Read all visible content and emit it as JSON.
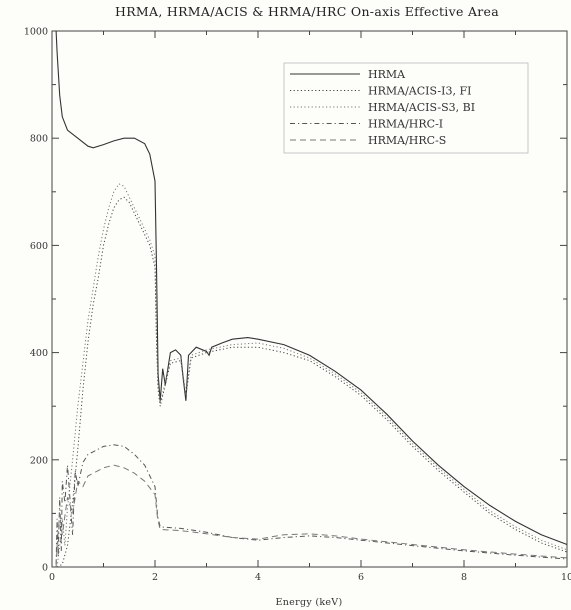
{
  "chart_data": {
    "type": "line",
    "title": "HRMA, HRMA/ACIS & HRMA/HRC On-axis Effective Area",
    "xlabel": "Energy (keV)",
    "ylabel": "",
    "xlim": [
      0,
      10
    ],
    "ylim": [
      0,
      1000
    ],
    "x_ticks": [
      "0",
      "2",
      "4",
      "6",
      "8",
      "10"
    ],
    "y_ticks": [
      "0",
      "200",
      "400",
      "600",
      "800",
      "1000"
    ],
    "grid": false,
    "legend_position": "top-right",
    "series": [
      {
        "name": "HRMA",
        "style": "solid",
        "color": "#333333",
        "points": [
          [
            0.08,
            1000
          ],
          [
            0.1,
            960
          ],
          [
            0.15,
            880
          ],
          [
            0.2,
            840
          ],
          [
            0.3,
            815
          ],
          [
            0.5,
            800
          ],
          [
            0.7,
            785
          ],
          [
            0.8,
            782
          ],
          [
            1.0,
            788
          ],
          [
            1.2,
            795
          ],
          [
            1.4,
            800
          ],
          [
            1.6,
            800
          ],
          [
            1.8,
            790
          ],
          [
            1.9,
            770
          ],
          [
            2.0,
            720
          ],
          [
            2.03,
            560
          ],
          [
            2.06,
            360
          ],
          [
            2.1,
            310
          ],
          [
            2.15,
            370
          ],
          [
            2.2,
            340
          ],
          [
            2.3,
            400
          ],
          [
            2.4,
            405
          ],
          [
            2.5,
            395
          ],
          [
            2.55,
            350
          ],
          [
            2.6,
            310
          ],
          [
            2.65,
            395
          ],
          [
            2.8,
            410
          ],
          [
            3.0,
            402
          ],
          [
            3.05,
            395
          ],
          [
            3.1,
            410
          ],
          [
            3.3,
            418
          ],
          [
            3.5,
            425
          ],
          [
            3.8,
            428
          ],
          [
            4.0,
            425
          ],
          [
            4.5,
            415
          ],
          [
            5.0,
            395
          ],
          [
            5.5,
            365
          ],
          [
            6.0,
            330
          ],
          [
            6.5,
            285
          ],
          [
            7.0,
            235
          ],
          [
            7.5,
            190
          ],
          [
            8.0,
            150
          ],
          [
            8.5,
            115
          ],
          [
            9.0,
            85
          ],
          [
            9.5,
            60
          ],
          [
            10.0,
            42
          ]
        ]
      },
      {
        "name": "HRMA/ACIS-I3, FI",
        "style": "dotted",
        "color": "#444444",
        "points": [
          [
            0.1,
            0
          ],
          [
            0.2,
            5
          ],
          [
            0.3,
            40
          ],
          [
            0.4,
            120
          ],
          [
            0.5,
            220
          ],
          [
            0.6,
            330
          ],
          [
            0.7,
            420
          ],
          [
            0.8,
            490
          ],
          [
            0.9,
            540
          ],
          [
            1.0,
            600
          ],
          [
            1.1,
            640
          ],
          [
            1.2,
            670
          ],
          [
            1.3,
            685
          ],
          [
            1.4,
            690
          ],
          [
            1.5,
            680
          ],
          [
            1.6,
            660
          ],
          [
            1.7,
            640
          ],
          [
            1.8,
            620
          ],
          [
            1.9,
            600
          ],
          [
            2.0,
            560
          ],
          [
            2.03,
            420
          ],
          [
            2.06,
            330
          ],
          [
            2.1,
            300
          ],
          [
            2.2,
            340
          ],
          [
            2.3,
            380
          ],
          [
            2.5,
            385
          ],
          [
            2.6,
            320
          ],
          [
            2.7,
            390
          ],
          [
            3.0,
            400
          ],
          [
            3.5,
            410
          ],
          [
            4.0,
            410
          ],
          [
            4.5,
            400
          ],
          [
            5.0,
            385
          ],
          [
            5.5,
            355
          ],
          [
            6.0,
            320
          ],
          [
            6.5,
            275
          ],
          [
            7.0,
            225
          ],
          [
            7.5,
            180
          ],
          [
            8.0,
            140
          ],
          [
            8.5,
            100
          ],
          [
            9.0,
            70
          ],
          [
            9.5,
            45
          ],
          [
            10.0,
            28
          ]
        ]
      },
      {
        "name": "HRMA/ACIS-S3, BI",
        "style": "dotted",
        "color": "#777777",
        "points": [
          [
            0.1,
            0
          ],
          [
            0.15,
            40
          ],
          [
            0.2,
            90
          ],
          [
            0.25,
            40
          ],
          [
            0.3,
            110
          ],
          [
            0.4,
            200
          ],
          [
            0.5,
            300
          ],
          [
            0.6,
            380
          ],
          [
            0.7,
            460
          ],
          [
            0.8,
            520
          ],
          [
            0.9,
            580
          ],
          [
            1.0,
            630
          ],
          [
            1.1,
            670
          ],
          [
            1.2,
            700
          ],
          [
            1.3,
            715
          ],
          [
            1.4,
            710
          ],
          [
            1.5,
            690
          ],
          [
            1.6,
            670
          ],
          [
            1.7,
            650
          ],
          [
            1.8,
            630
          ],
          [
            1.9,
            610
          ],
          [
            2.0,
            580
          ],
          [
            2.03,
            430
          ],
          [
            2.06,
            340
          ],
          [
            2.1,
            305
          ],
          [
            2.2,
            345
          ],
          [
            2.3,
            385
          ],
          [
            2.5,
            390
          ],
          [
            2.6,
            320
          ],
          [
            2.7,
            395
          ],
          [
            3.0,
            405
          ],
          [
            3.5,
            415
          ],
          [
            4.0,
            418
          ],
          [
            4.5,
            408
          ],
          [
            5.0,
            390
          ],
          [
            5.5,
            360
          ],
          [
            6.0,
            325
          ],
          [
            6.5,
            280
          ],
          [
            7.0,
            230
          ],
          [
            7.5,
            185
          ],
          [
            8.0,
            145
          ],
          [
            8.5,
            105
          ],
          [
            9.0,
            75
          ],
          [
            9.5,
            50
          ],
          [
            10.0,
            32
          ]
        ]
      },
      {
        "name": "HRMA/HRC-I",
        "style": "dashdot",
        "color": "#555555",
        "points": [
          [
            0.08,
            5
          ],
          [
            0.1,
            90
          ],
          [
            0.12,
            20
          ],
          [
            0.15,
            130
          ],
          [
            0.18,
            30
          ],
          [
            0.2,
            160
          ],
          [
            0.25,
            120
          ],
          [
            0.3,
            190
          ],
          [
            0.4,
            60
          ],
          [
            0.45,
            180
          ],
          [
            0.5,
            150
          ],
          [
            0.6,
            195
          ],
          [
            0.7,
            210
          ],
          [
            0.8,
            215
          ],
          [
            1.0,
            225
          ],
          [
            1.2,
            228
          ],
          [
            1.4,
            225
          ],
          [
            1.6,
            210
          ],
          [
            1.8,
            190
          ],
          [
            1.9,
            170
          ],
          [
            2.0,
            150
          ],
          [
            2.05,
            95
          ],
          [
            2.1,
            75
          ],
          [
            2.5,
            72
          ],
          [
            3.0,
            65
          ],
          [
            3.5,
            55
          ],
          [
            4.0,
            50
          ],
          [
            4.5,
            55
          ],
          [
            5.0,
            58
          ],
          [
            5.5,
            55
          ],
          [
            6.0,
            50
          ],
          [
            7.0,
            40
          ],
          [
            8.0,
            30
          ],
          [
            9.0,
            22
          ],
          [
            10.0,
            15
          ]
        ]
      },
      {
        "name": "HRMA/HRC-S",
        "style": "dashed",
        "color": "#777777",
        "points": [
          [
            0.08,
            0
          ],
          [
            0.1,
            40
          ],
          [
            0.15,
            100
          ],
          [
            0.2,
            60
          ],
          [
            0.3,
            130
          ],
          [
            0.4,
            100
          ],
          [
            0.5,
            160
          ],
          [
            0.6,
            150
          ],
          [
            0.7,
            170
          ],
          [
            0.8,
            175
          ],
          [
            1.0,
            185
          ],
          [
            1.2,
            190
          ],
          [
            1.4,
            185
          ],
          [
            1.6,
            175
          ],
          [
            1.8,
            160
          ],
          [
            2.0,
            135
          ],
          [
            2.05,
            90
          ],
          [
            2.1,
            70
          ],
          [
            2.5,
            68
          ],
          [
            3.0,
            62
          ],
          [
            3.5,
            55
          ],
          [
            4.0,
            52
          ],
          [
            4.5,
            60
          ],
          [
            5.0,
            62
          ],
          [
            5.5,
            58
          ],
          [
            6.0,
            52
          ],
          [
            7.0,
            42
          ],
          [
            8.0,
            32
          ],
          [
            9.0,
            24
          ],
          [
            10.0,
            17
          ]
        ]
      }
    ]
  }
}
